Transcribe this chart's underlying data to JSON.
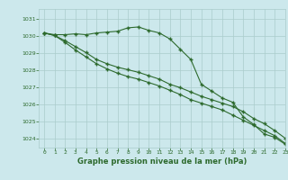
{
  "xlabel": "Graphe pression niveau de la mer (hPa)",
  "xlim": [
    -0.5,
    23
  ],
  "ylim": [
    1023.5,
    1031.6
  ],
  "yticks": [
    1024,
    1025,
    1026,
    1027,
    1028,
    1029,
    1030,
    1031
  ],
  "xticks": [
    0,
    1,
    2,
    3,
    4,
    5,
    6,
    7,
    8,
    9,
    10,
    11,
    12,
    13,
    14,
    15,
    16,
    17,
    18,
    19,
    20,
    21,
    22,
    23
  ],
  "bg_color": "#cce8ec",
  "grid_color": "#aacccc",
  "line_color": "#2d6a2d",
  "line1": [
    1030.2,
    1030.1,
    1030.1,
    1030.15,
    1030.1,
    1030.2,
    1030.25,
    1030.3,
    1030.5,
    1030.55,
    1030.35,
    1030.2,
    1029.85,
    1029.25,
    1028.65,
    1027.2,
    1026.8,
    1026.4,
    1026.15,
    1025.3,
    1024.85,
    1024.3,
    1024.1,
    1023.7
  ],
  "line2": [
    1030.2,
    1030.05,
    1029.75,
    1029.4,
    1029.05,
    1028.65,
    1028.4,
    1028.2,
    1028.05,
    1027.9,
    1027.7,
    1027.5,
    1027.2,
    1027.0,
    1026.75,
    1026.5,
    1026.3,
    1026.1,
    1025.9,
    1025.6,
    1025.2,
    1024.9,
    1024.5,
    1024.05
  ],
  "line3": [
    1030.2,
    1030.05,
    1029.65,
    1029.2,
    1028.8,
    1028.4,
    1028.1,
    1027.85,
    1027.65,
    1027.5,
    1027.3,
    1027.1,
    1026.85,
    1026.6,
    1026.3,
    1026.1,
    1025.9,
    1025.7,
    1025.4,
    1025.1,
    1024.8,
    1024.5,
    1024.2,
    1023.75
  ]
}
